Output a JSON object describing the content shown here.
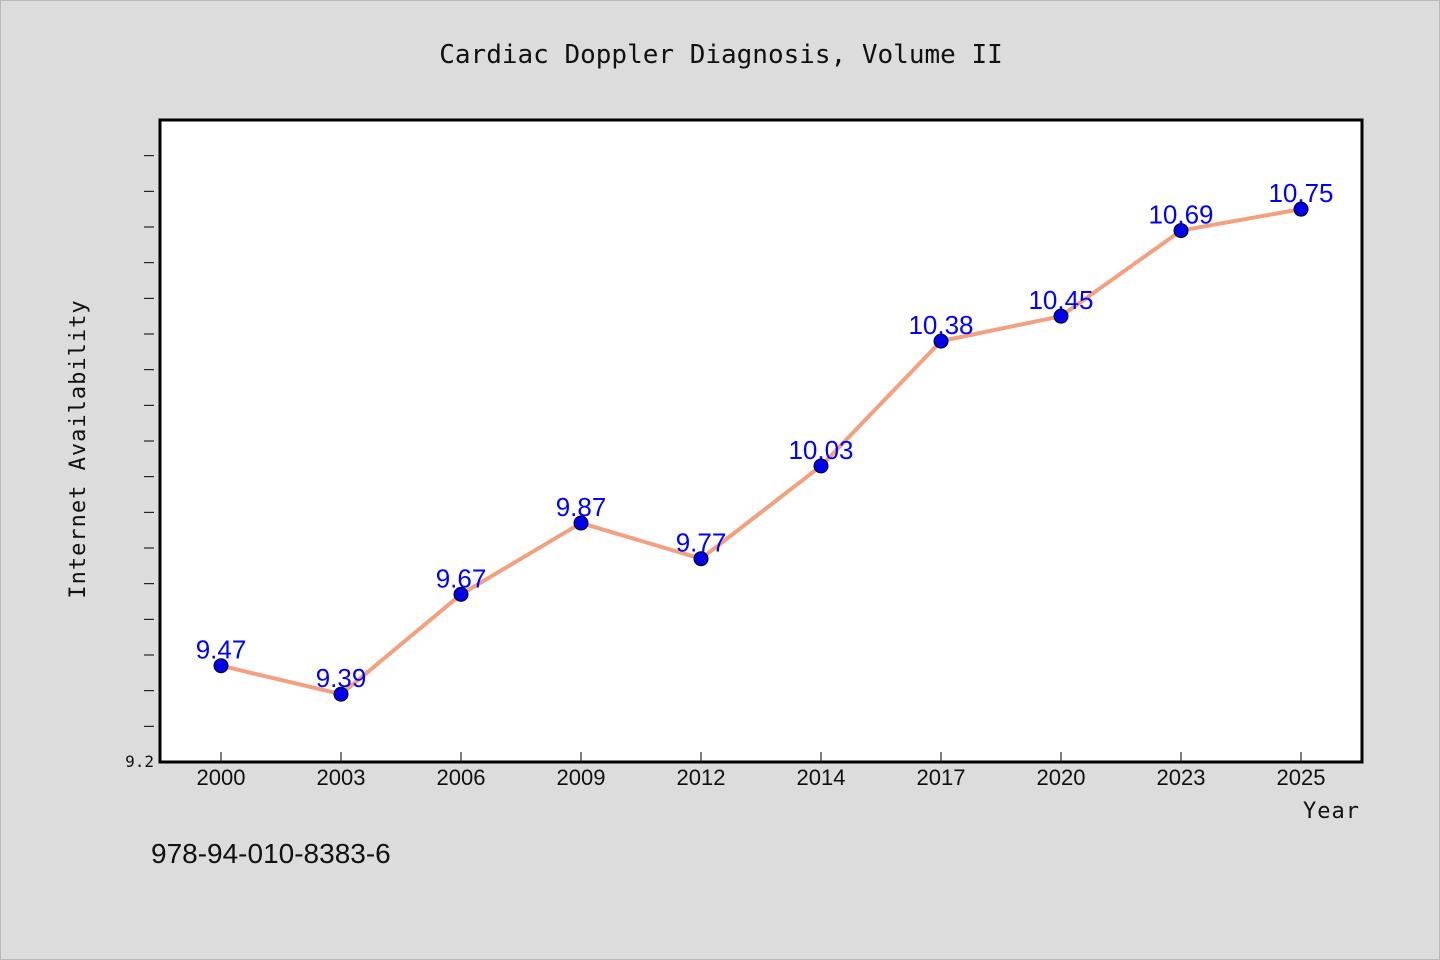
{
  "chart_data": {
    "type": "line",
    "title": "Cardiac Doppler Diagnosis, Volume II",
    "xlabel": "Year",
    "ylabel": "Internet Availability",
    "categories": [
      "2000",
      "2003",
      "2006",
      "2009",
      "2012",
      "2014",
      "2017",
      "2020",
      "2023",
      "2025"
    ],
    "series": [
      {
        "values": [
          9.47,
          9.39,
          9.67,
          9.87,
          9.77,
          10.03,
          10.38,
          10.45,
          10.69,
          10.75
        ]
      }
    ],
    "data_labels": [
      "9.47",
      "9.39",
      "9.67",
      "9.87",
      "9.77",
      "10.03",
      "10.38",
      "10.45",
      "10.69",
      "10.75"
    ],
    "y_tick_labels": [
      "9.2"
    ],
    "ylim": [
      9.2,
      11.0
    ],
    "y_minor_tick_step": 0.1,
    "grid": false,
    "legend": "none",
    "colors": {
      "line": "#f4a07e",
      "marker": "#0000ee",
      "label": "#0000ff",
      "background": "#dcdcdc",
      "plot_background": "#ffffff"
    }
  },
  "footnote": "978-94-010-8383-6"
}
